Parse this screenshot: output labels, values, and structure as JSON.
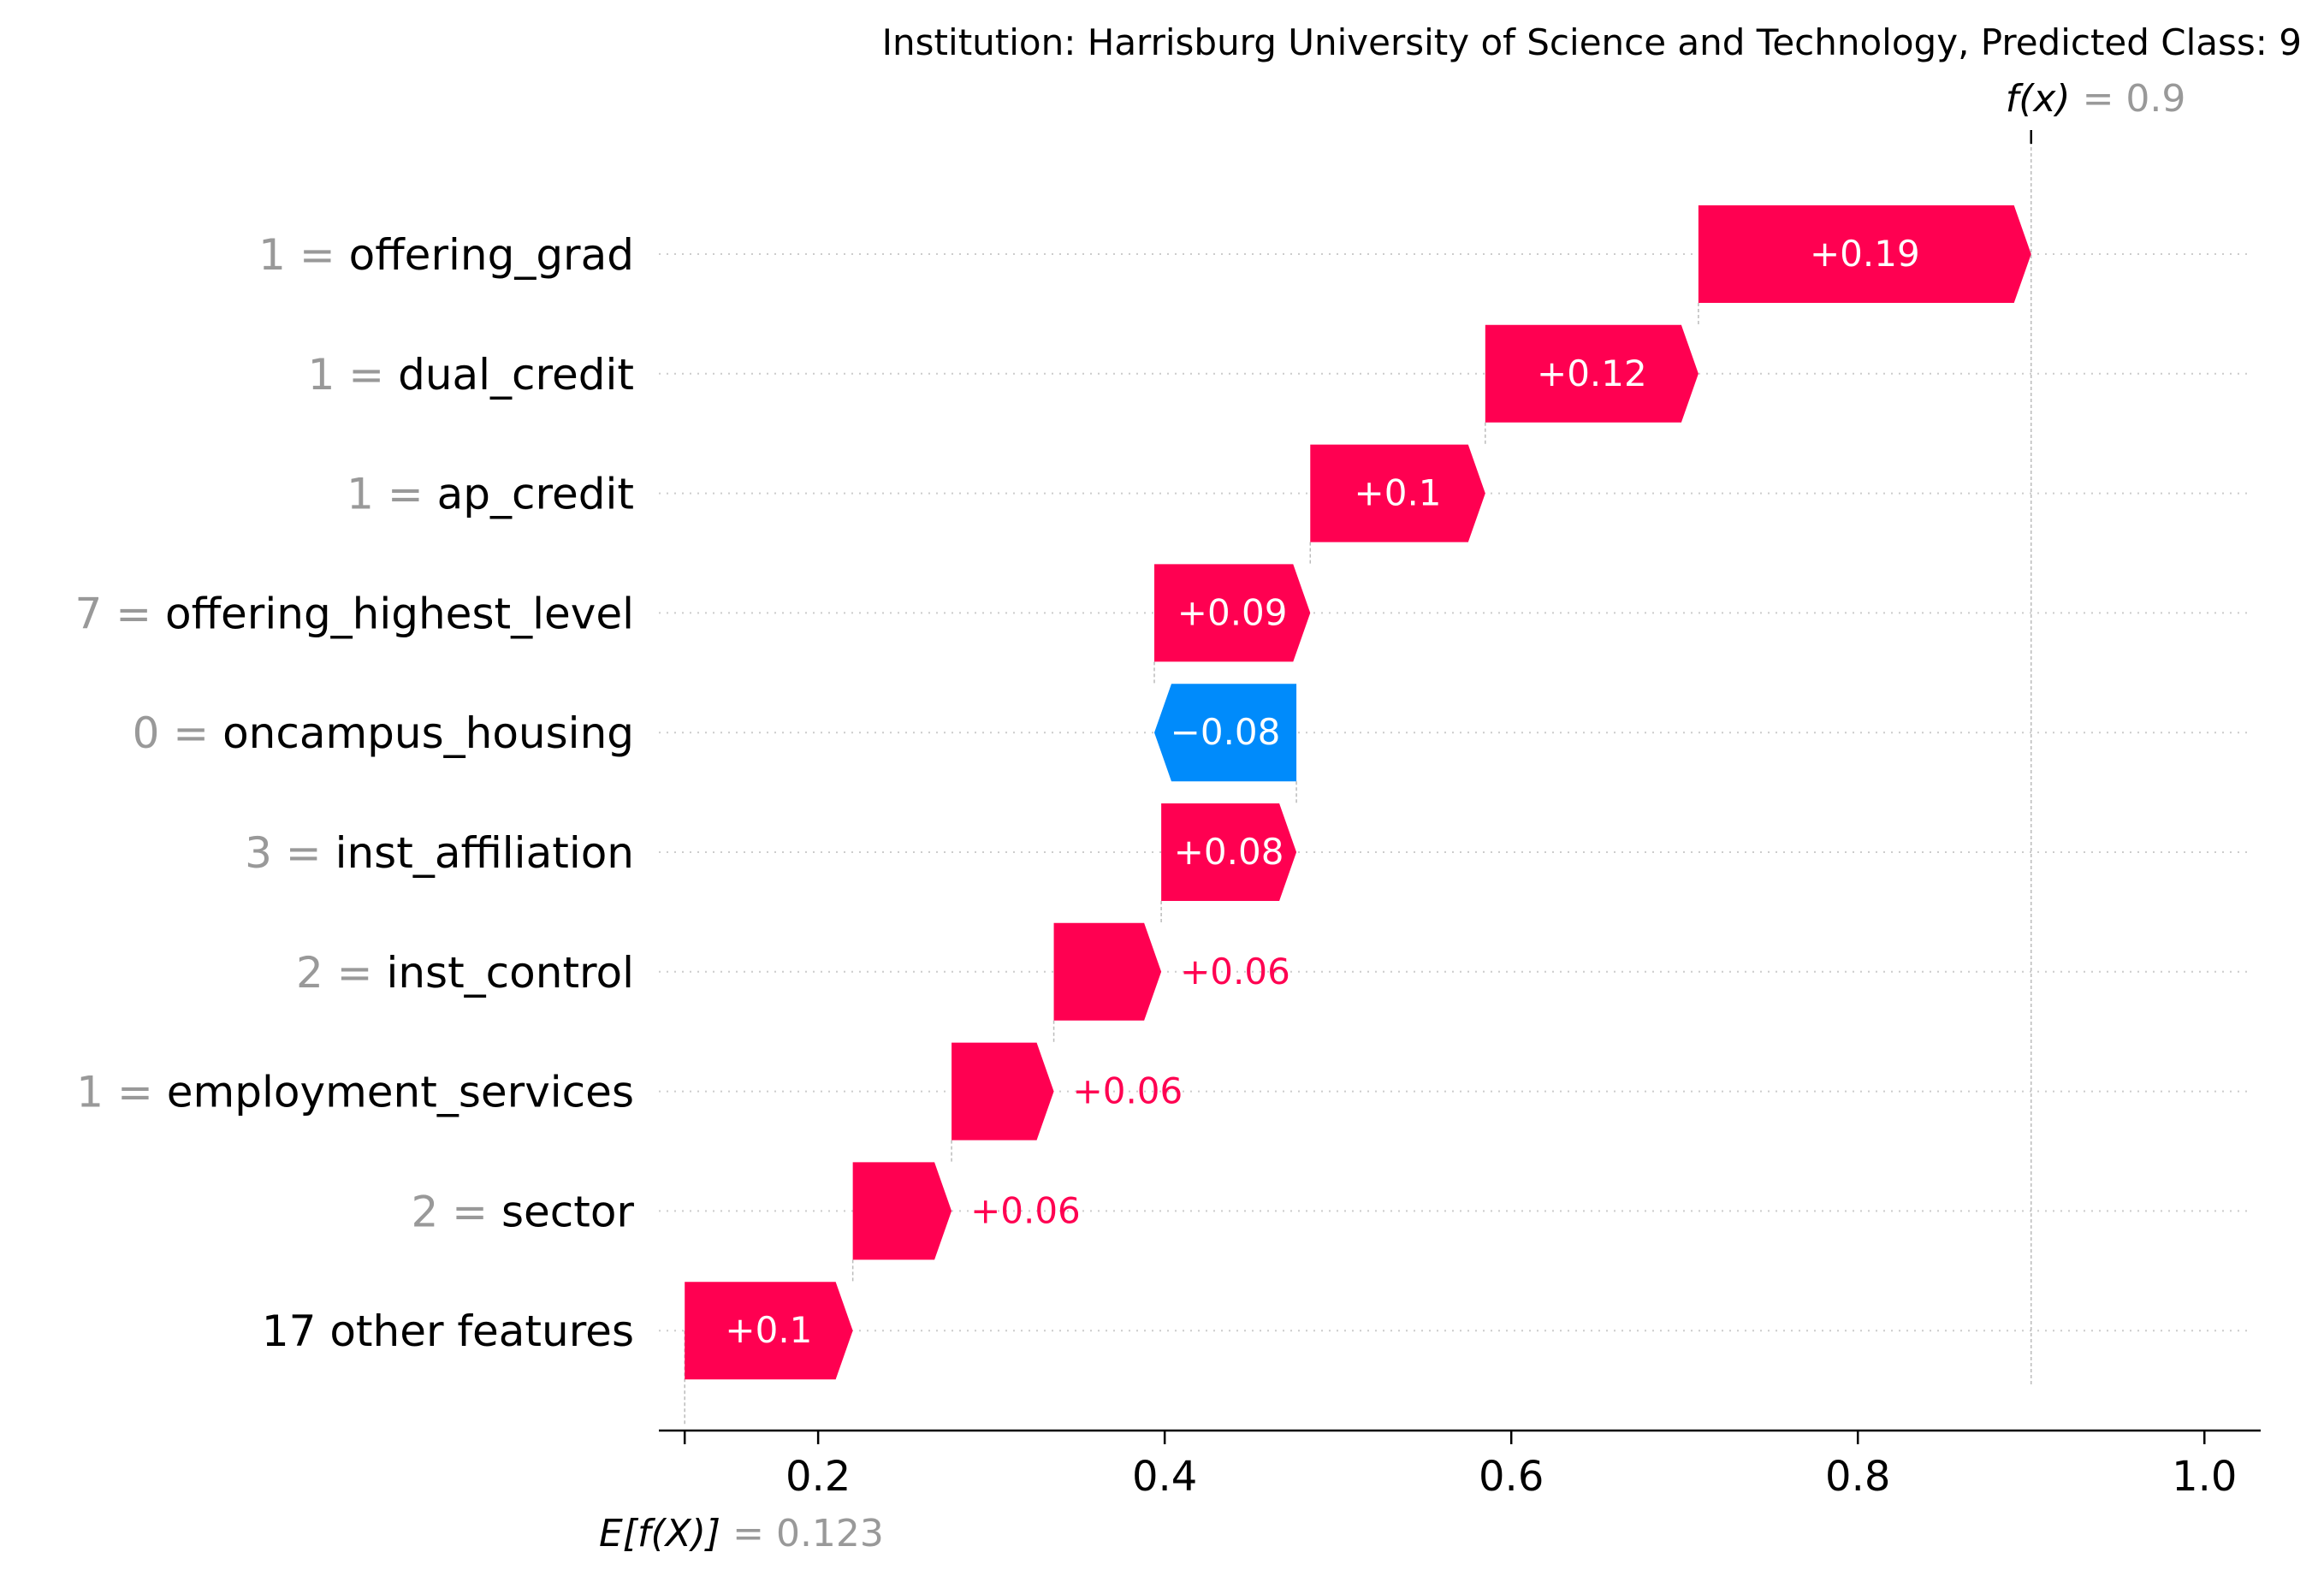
{
  "chart_data": {
    "type": "waterfall",
    "title": "Institution: Harrisburg University of Science and Technology, Predicted Class: 9",
    "fx_label": "f(x)",
    "fx_value_text": "= 0.9",
    "fx": 0.9,
    "efx_label": "E[f(X)]",
    "efx_value_text": "= 0.123",
    "base_value": 0.123,
    "xlim": [
      0.115,
      1.03
    ],
    "xticks": [
      0.2,
      0.4,
      0.6,
      0.8,
      1.0
    ],
    "xtick_labels": [
      "0.2",
      "0.4",
      "0.6",
      "0.8",
      "1.0"
    ],
    "colors": {
      "positive": "#ff0051",
      "negative": "#008bfb",
      "value_gray": "#999999",
      "text": "#000000"
    },
    "features": [
      {
        "value": "1",
        "name": "offering_grad",
        "contribution": 0.19,
        "start": 0.708,
        "end": 0.9,
        "label": "+0.19",
        "label_inside": true
      },
      {
        "value": "1",
        "name": "dual_credit",
        "contribution": 0.12,
        "start": 0.585,
        "end": 0.708,
        "label": "+0.12",
        "label_inside": true
      },
      {
        "value": "1",
        "name": "ap_credit",
        "contribution": 0.1,
        "start": 0.484,
        "end": 0.585,
        "label": "+0.1",
        "label_inside": true
      },
      {
        "value": "7",
        "name": "offering_highest_level",
        "contribution": 0.09,
        "start": 0.394,
        "end": 0.484,
        "label": "+0.09",
        "label_inside": true
      },
      {
        "value": "0",
        "name": "oncampus_housing",
        "contribution": -0.08,
        "start": 0.476,
        "end": 0.394,
        "label": "−0.08",
        "label_inside": true
      },
      {
        "value": "3",
        "name": "inst_affiliation",
        "contribution": 0.08,
        "start": 0.398,
        "end": 0.476,
        "label": "+0.08",
        "label_inside": true
      },
      {
        "value": "2",
        "name": "inst_control",
        "contribution": 0.06,
        "start": 0.336,
        "end": 0.398,
        "label": "+0.06",
        "label_inside": false
      },
      {
        "value": "1",
        "name": "employment_services",
        "contribution": 0.06,
        "start": 0.277,
        "end": 0.336,
        "label": "+0.06",
        "label_inside": false
      },
      {
        "value": "2",
        "name": "sector",
        "contribution": 0.06,
        "start": 0.22,
        "end": 0.277,
        "label": "+0.06",
        "label_inside": false
      },
      {
        "value": "",
        "name": "17 other features",
        "contribution": 0.1,
        "start": 0.123,
        "end": 0.22,
        "label": "+0.1",
        "label_inside": true
      }
    ]
  }
}
